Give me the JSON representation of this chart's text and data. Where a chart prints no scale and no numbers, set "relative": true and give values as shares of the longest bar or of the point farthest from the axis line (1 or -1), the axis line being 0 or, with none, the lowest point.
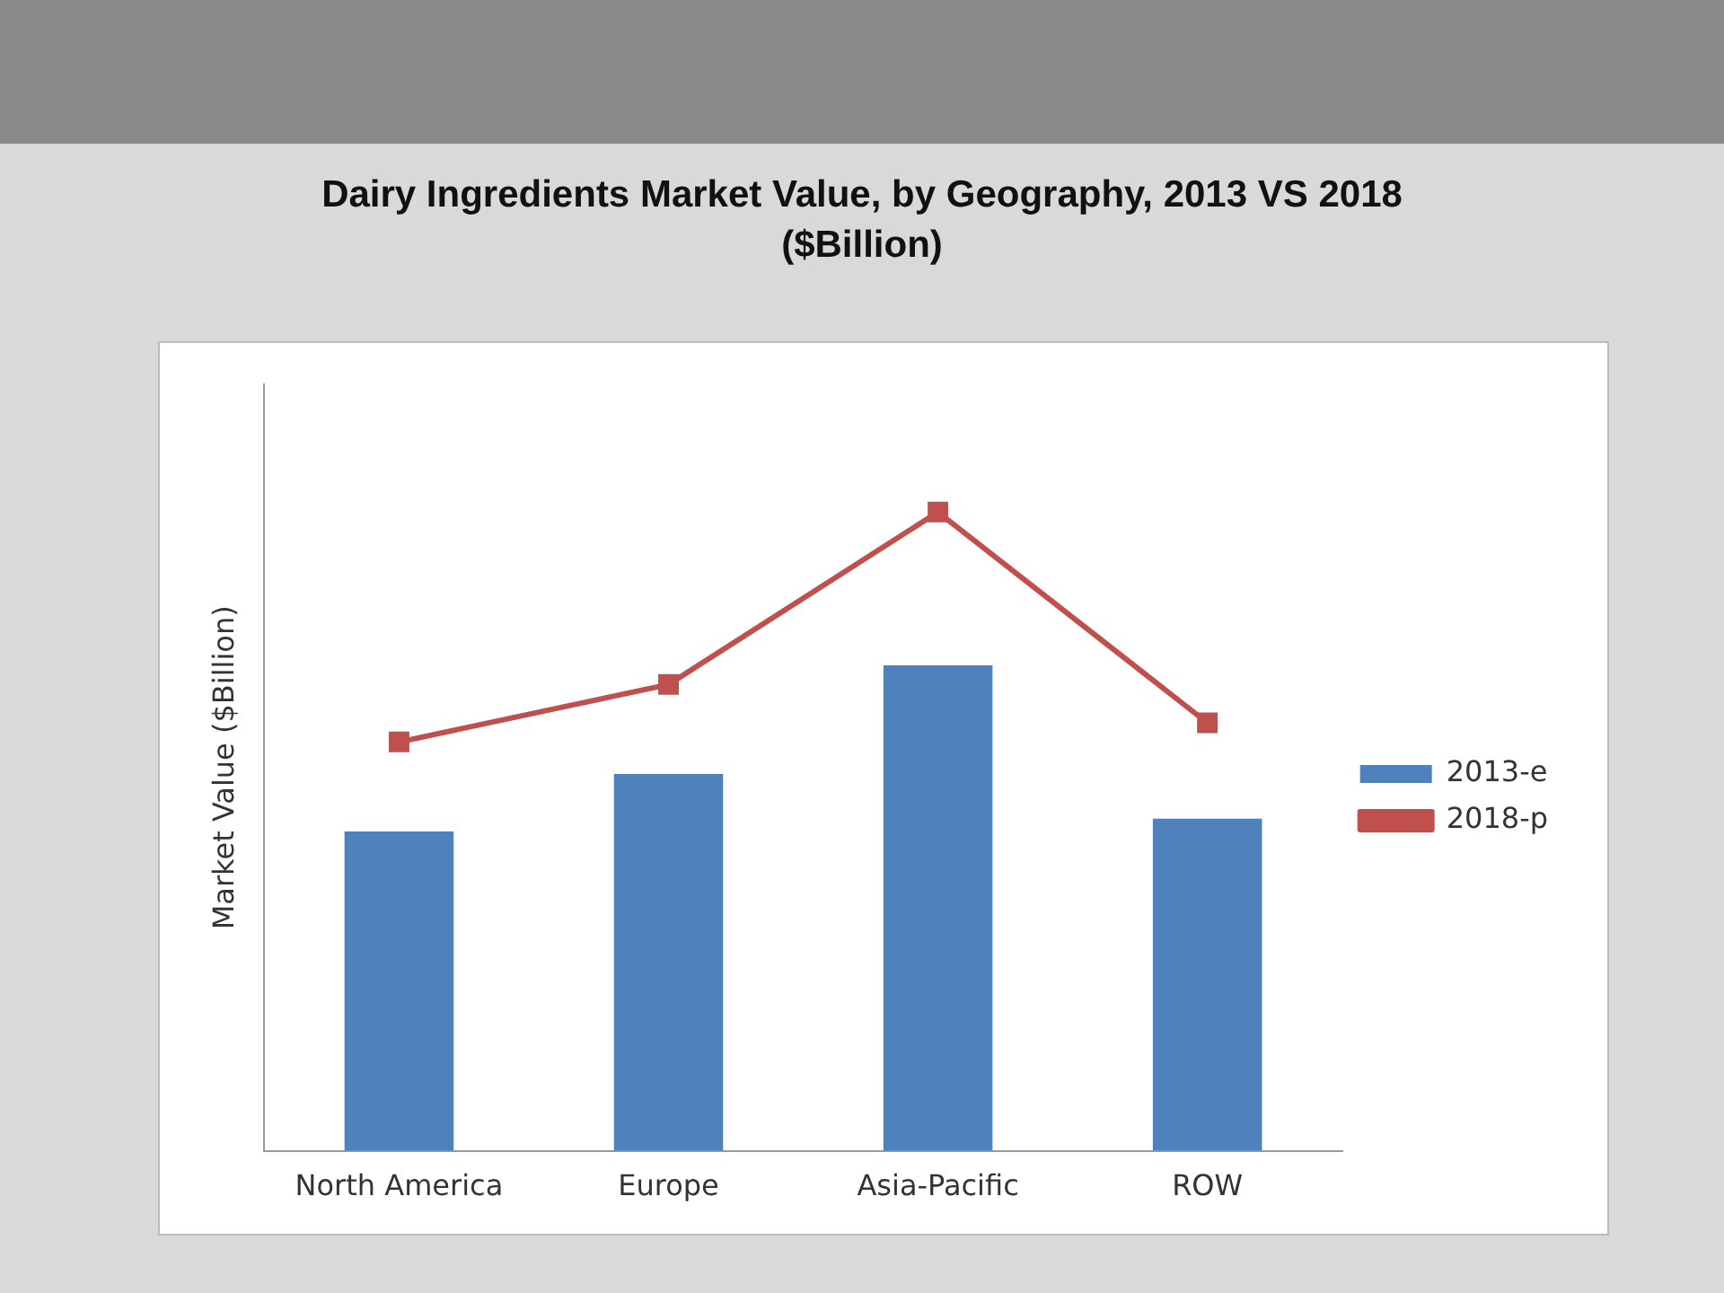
{
  "chart_data": {
    "type": "bar",
    "title": "Dairy Ingredients Market Value, by Geography, 2013 VS 2018",
    "subtitle": "($Billion)",
    "ylabel": "Market Value ($Billion)",
    "relative": true,
    "categories": [
      "North America",
      "Europe",
      "Asia-Pacific",
      "ROW"
    ],
    "series": [
      {
        "name": "2013-e",
        "color": "#4f81bd",
        "values": [
          0.5,
          0.59,
          0.76,
          0.52
        ]
      },
      {
        "name": "2018-p",
        "type": "line",
        "color": "#c0504d",
        "values": [
          0.64,
          0.73,
          1,
          0.67
        ]
      }
    ],
    "legend": "right",
    "marker": "square",
    "grid": false
  }
}
